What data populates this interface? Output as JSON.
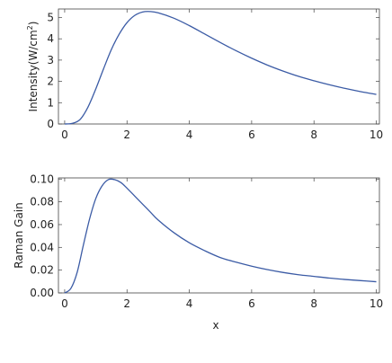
{
  "chart_data": [
    {
      "type": "line",
      "title": "",
      "xlabel": "",
      "ylabel": "Intensity(W/cm²)",
      "ylabel_parts": [
        "Intensity(W/cm",
        "2",
        ")"
      ],
      "xlim": [
        -0.2,
        10.1
      ],
      "ylim": [
        0,
        5.4
      ],
      "xticks": [
        0,
        2,
        4,
        6,
        8,
        10
      ],
      "yticks": [
        0,
        1,
        2,
        3,
        4,
        5
      ],
      "ytick_labels": [
        "0",
        "1",
        "2",
        "3",
        "4",
        "5"
      ],
      "grid": false,
      "color": "#3b5ba5",
      "series": [
        {
          "x": [
            0,
            0.25,
            0.5,
            0.75,
            1.0,
            1.25,
            1.5,
            1.75,
            2.0,
            2.25,
            2.5,
            2.75,
            3.0,
            3.5,
            4.0,
            4.5,
            5.0,
            5.5,
            6.0,
            6.5,
            7.0,
            7.5,
            8.0,
            8.5,
            9.0,
            9.5,
            10.0
          ],
          "values": [
            0,
            0.03,
            0.22,
            0.8,
            1.65,
            2.6,
            3.5,
            4.22,
            4.76,
            5.1,
            5.26,
            5.28,
            5.22,
            4.97,
            4.62,
            4.22,
            3.82,
            3.44,
            3.09,
            2.77,
            2.49,
            2.24,
            2.03,
            1.84,
            1.67,
            1.52,
            1.39
          ]
        }
      ]
    },
    {
      "type": "line",
      "title": "",
      "xlabel": "x",
      "ylabel": "Raman Gain",
      "xlim": [
        -0.2,
        10.1
      ],
      "ylim": [
        0,
        0.101
      ],
      "xticks": [
        0,
        2,
        4,
        6,
        8,
        10
      ],
      "yticks": [
        0,
        0.02,
        0.04,
        0.06,
        0.08,
        0.1
      ],
      "ytick_labels": [
        "0.00",
        "0.02",
        "0.04",
        "0.06",
        "0.08",
        "0.10"
      ],
      "grid": false,
      "color": "#3b5ba5",
      "series": [
        {
          "x": [
            0,
            0.2,
            0.4,
            0.6,
            0.8,
            1.0,
            1.2,
            1.4,
            1.6,
            1.8,
            2.0,
            2.25,
            2.5,
            2.75,
            3.0,
            3.5,
            4.0,
            4.5,
            5.0,
            5.5,
            6.0,
            6.5,
            7.0,
            7.5,
            8.0,
            8.5,
            9.0,
            9.5,
            10.0
          ],
          "values": [
            0,
            0.004,
            0.018,
            0.042,
            0.065,
            0.083,
            0.094,
            0.0995,
            0.0995,
            0.097,
            0.092,
            0.085,
            0.078,
            0.071,
            0.064,
            0.053,
            0.044,
            0.037,
            0.031,
            0.027,
            0.0235,
            0.0205,
            0.018,
            0.016,
            0.0145,
            0.013,
            0.0118,
            0.0108,
            0.0098
          ]
        }
      ]
    }
  ]
}
